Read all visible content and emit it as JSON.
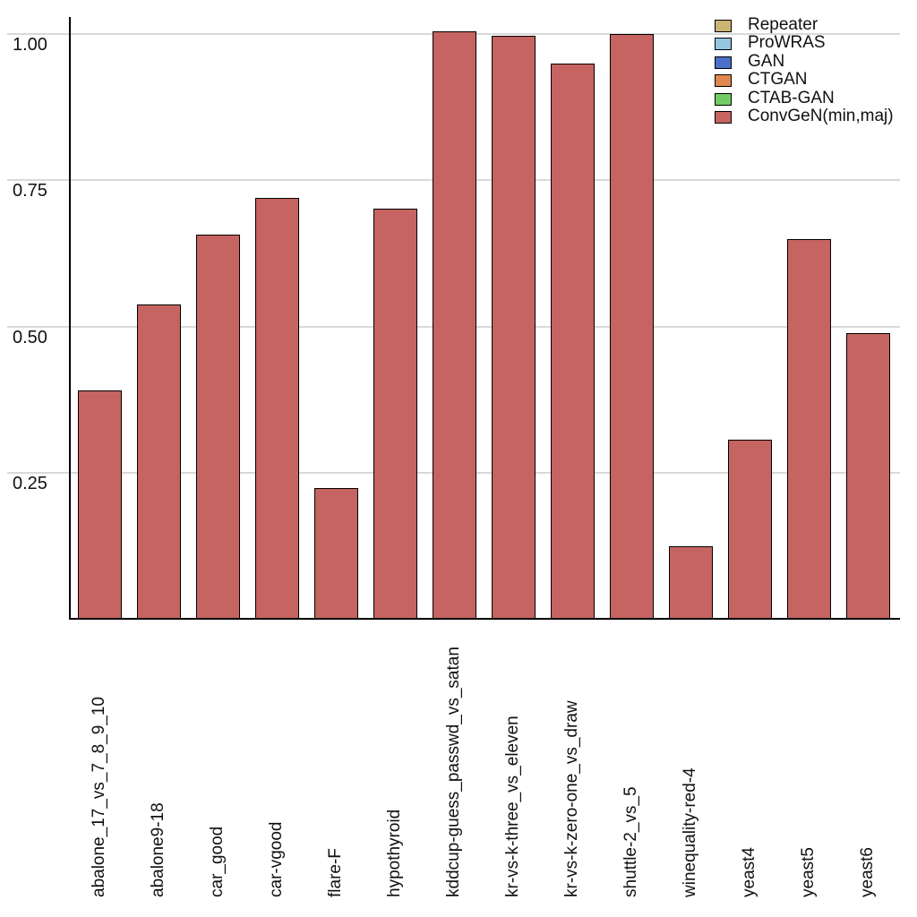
{
  "chart_data": {
    "type": "bar",
    "title": "",
    "xlabel": "",
    "ylabel": "",
    "categories": [
      "abalone_17_vs_7_8_9_10",
      "abalone9-18",
      "car_good",
      "car-vgood",
      "flare-F",
      "hypothyroid",
      "kddcup-guess_passwd_vs_satan",
      "kr-vs-k-three_vs_eleven",
      "kr-vs-k-zero-one_vs_draw",
      "shuttle-2_vs_5",
      "winequality-red-4",
      "yeast4",
      "yeast5",
      "yeast6"
    ],
    "series": [
      {
        "name": "Repeater",
        "color": "#cbb574",
        "values": null
      },
      {
        "name": "ProWRAS",
        "color": "#94c6e0",
        "values": null
      },
      {
        "name": "GAN",
        "color": "#4a70c8",
        "values": null
      },
      {
        "name": "CTGAN",
        "color": "#e0884f",
        "values": null
      },
      {
        "name": "CTAB-GAN",
        "color": "#74cb66",
        "values": null
      },
      {
        "name": "ConvGeN(min,maj)",
        "color": "#c56460",
        "values": [
          0.39,
          0.538,
          0.657,
          0.719,
          0.223,
          0.701,
          1.005,
          0.997,
          0.95,
          1.0,
          0.124,
          0.307,
          0.649,
          0.489
        ]
      }
    ],
    "legend": [
      {
        "label": "Repeater",
        "color": "#cbb574"
      },
      {
        "label": "ProWRAS",
        "color": "#94c6e0"
      },
      {
        "label": "GAN",
        "color": "#4a70c8"
      },
      {
        "label": "CTGAN",
        "color": "#e0884f"
      },
      {
        "label": "CTAB-GAN",
        "color": "#74cb66"
      },
      {
        "label": "ConvGeN(min,maj)",
        "color": "#c56460"
      }
    ],
    "legend_position": "top-right",
    "yticks": [
      0.25,
      0.5,
      0.75,
      1.0
    ],
    "ytick_labels": [
      "0.25",
      "0.50",
      "0.75",
      "1.00"
    ],
    "ylim": [
      0,
      1.01
    ],
    "grid": true,
    "bar_edge_color": "#000000",
    "gridline_color": "#d9d9d9"
  }
}
